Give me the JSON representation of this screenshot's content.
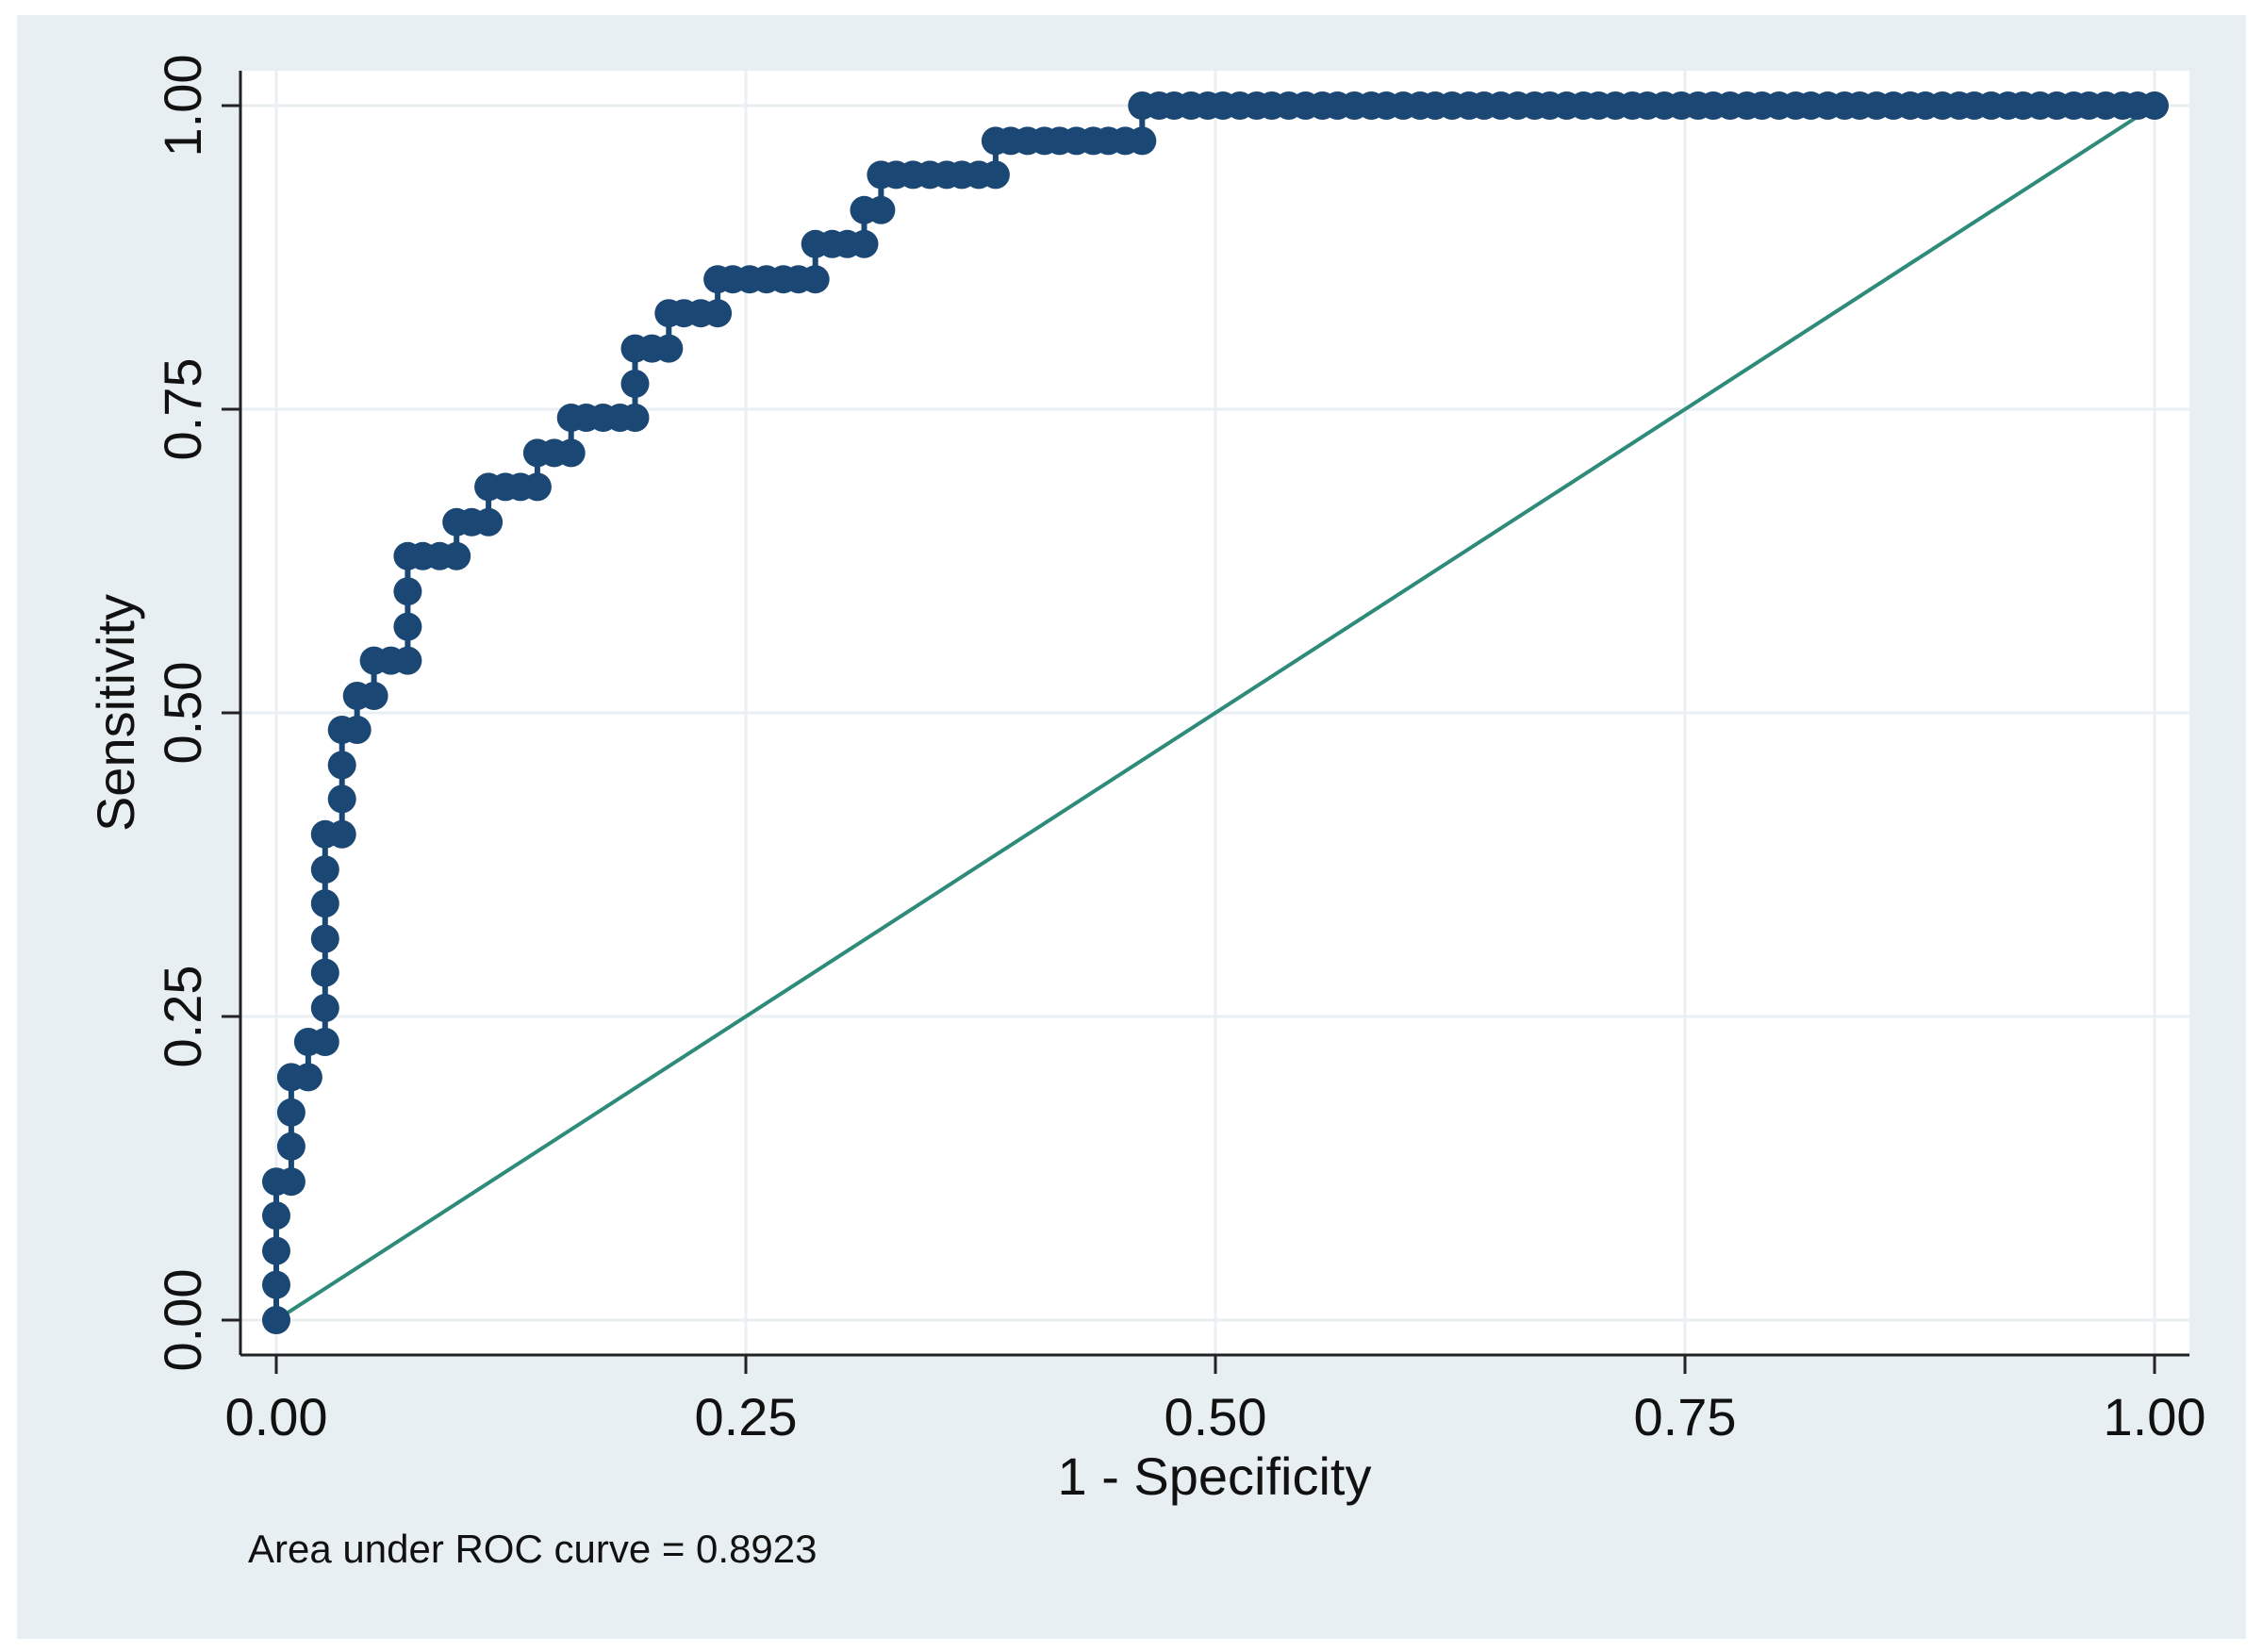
{
  "chart_data": {
    "type": "scatter",
    "title": "",
    "xlabel": "1 - Specificity",
    "ylabel": "Sensitivity",
    "xlim": [
      0,
      1
    ],
    "ylim": [
      0,
      1
    ],
    "x_ticks": [
      "0.00",
      "0.25",
      "0.50",
      "0.75",
      "1.00"
    ],
    "y_ticks": [
      "0.00",
      "0.25",
      "0.50",
      "0.75",
      "1.00"
    ],
    "grid": true,
    "legend": "none",
    "note": "Area under ROC curve = 0.8923",
    "colors": {
      "outer_background": "#e8eff2",
      "plot_background": "#ffffff",
      "grid": "#e9eff2",
      "axis": "#222222",
      "roc_markers": "#1a4773",
      "reference_line": "#2e8b7a"
    },
    "series": [
      {
        "style": "connected markers",
        "points": [
          [
            0.0,
            0.0
          ],
          [
            0.0,
            0.029
          ],
          [
            0.0,
            0.057
          ],
          [
            0.0,
            0.086
          ],
          [
            0.0,
            0.114
          ],
          [
            0.008,
            0.114
          ],
          [
            0.008,
            0.143
          ],
          [
            0.008,
            0.171
          ],
          [
            0.008,
            0.2
          ],
          [
            0.017,
            0.2
          ],
          [
            0.017,
            0.229
          ],
          [
            0.026,
            0.229
          ],
          [
            0.026,
            0.257
          ],
          [
            0.026,
            0.286
          ],
          [
            0.026,
            0.314
          ],
          [
            0.026,
            0.343
          ],
          [
            0.026,
            0.371
          ],
          [
            0.026,
            0.4
          ],
          [
            0.035,
            0.4
          ],
          [
            0.035,
            0.429
          ],
          [
            0.035,
            0.457
          ],
          [
            0.035,
            0.486
          ],
          [
            0.043,
            0.486
          ],
          [
            0.043,
            0.514
          ],
          [
            0.052,
            0.514
          ],
          [
            0.052,
            0.543
          ],
          [
            0.061,
            0.543
          ],
          [
            0.07,
            0.543
          ],
          [
            0.07,
            0.571
          ],
          [
            0.07,
            0.6
          ],
          [
            0.07,
            0.629
          ],
          [
            0.078,
            0.629
          ],
          [
            0.087,
            0.629
          ],
          [
            0.096,
            0.629
          ],
          [
            0.096,
            0.657
          ],
          [
            0.104,
            0.657
          ],
          [
            0.113,
            0.657
          ],
          [
            0.113,
            0.686
          ],
          [
            0.122,
            0.686
          ],
          [
            0.13,
            0.686
          ],
          [
            0.139,
            0.686
          ],
          [
            0.139,
            0.714
          ],
          [
            0.148,
            0.714
          ],
          [
            0.157,
            0.714
          ],
          [
            0.157,
            0.743
          ],
          [
            0.165,
            0.743
          ],
          [
            0.174,
            0.743
          ],
          [
            0.183,
            0.743
          ],
          [
            0.191,
            0.743
          ],
          [
            0.191,
            0.771
          ],
          [
            0.191,
            0.8
          ],
          [
            0.2,
            0.8
          ],
          [
            0.209,
            0.8
          ],
          [
            0.209,
            0.829
          ],
          [
            0.217,
            0.829
          ],
          [
            0.226,
            0.829
          ],
          [
            0.235,
            0.829
          ],
          [
            0.235,
            0.857
          ],
          [
            0.243,
            0.857
          ],
          [
            0.252,
            0.857
          ],
          [
            0.261,
            0.857
          ],
          [
            0.27,
            0.857
          ],
          [
            0.278,
            0.857
          ],
          [
            0.287,
            0.857
          ],
          [
            0.287,
            0.886
          ],
          [
            0.296,
            0.886
          ],
          [
            0.304,
            0.886
          ],
          [
            0.313,
            0.886
          ],
          [
            0.313,
            0.914
          ],
          [
            0.322,
            0.914
          ],
          [
            0.322,
            0.943
          ],
          [
            0.33,
            0.943
          ],
          [
            0.339,
            0.943
          ],
          [
            0.348,
            0.943
          ],
          [
            0.357,
            0.943
          ],
          [
            0.365,
            0.943
          ],
          [
            0.374,
            0.943
          ],
          [
            0.383,
            0.943
          ],
          [
            0.383,
            0.971
          ],
          [
            0.391,
            0.971
          ],
          [
            0.4,
            0.971
          ],
          [
            0.409,
            0.971
          ],
          [
            0.417,
            0.971
          ],
          [
            0.426,
            0.971
          ],
          [
            0.435,
            0.971
          ],
          [
            0.443,
            0.971
          ],
          [
            0.452,
            0.971
          ],
          [
            0.461,
            0.971
          ],
          [
            0.461,
            1.0
          ],
          [
            0.47,
            1.0
          ],
          [
            0.478,
            1.0
          ],
          [
            0.487,
            1.0
          ],
          [
            0.496,
            1.0
          ],
          [
            0.504,
            1.0
          ],
          [
            0.513,
            1.0
          ],
          [
            0.522,
            1.0
          ],
          [
            0.53,
            1.0
          ],
          [
            0.539,
            1.0
          ],
          [
            0.548,
            1.0
          ],
          [
            0.557,
            1.0
          ],
          [
            0.565,
            1.0
          ],
          [
            0.574,
            1.0
          ],
          [
            0.583,
            1.0
          ],
          [
            0.591,
            1.0
          ],
          [
            0.6,
            1.0
          ],
          [
            0.609,
            1.0
          ],
          [
            0.617,
            1.0
          ],
          [
            0.626,
            1.0
          ],
          [
            0.635,
            1.0
          ],
          [
            0.643,
            1.0
          ],
          [
            0.652,
            1.0
          ],
          [
            0.661,
            1.0
          ],
          [
            0.67,
            1.0
          ],
          [
            0.678,
            1.0
          ],
          [
            0.687,
            1.0
          ],
          [
            0.696,
            1.0
          ],
          [
            0.704,
            1.0
          ],
          [
            0.713,
            1.0
          ],
          [
            0.722,
            1.0
          ],
          [
            0.73,
            1.0
          ],
          [
            0.739,
            1.0
          ],
          [
            0.748,
            1.0
          ],
          [
            0.757,
            1.0
          ],
          [
            0.765,
            1.0
          ],
          [
            0.774,
            1.0
          ],
          [
            0.783,
            1.0
          ],
          [
            0.791,
            1.0
          ],
          [
            0.8,
            1.0
          ],
          [
            0.809,
            1.0
          ],
          [
            0.817,
            1.0
          ],
          [
            0.826,
            1.0
          ],
          [
            0.835,
            1.0
          ],
          [
            0.843,
            1.0
          ],
          [
            0.852,
            1.0
          ],
          [
            0.861,
            1.0
          ],
          [
            0.87,
            1.0
          ],
          [
            0.878,
            1.0
          ],
          [
            0.887,
            1.0
          ],
          [
            0.896,
            1.0
          ],
          [
            0.904,
            1.0
          ],
          [
            0.913,
            1.0
          ],
          [
            0.922,
            1.0
          ],
          [
            0.93,
            1.0
          ],
          [
            0.939,
            1.0
          ],
          [
            0.948,
            1.0
          ],
          [
            0.957,
            1.0
          ],
          [
            0.965,
            1.0
          ],
          [
            0.974,
            1.0
          ],
          [
            0.983,
            1.0
          ],
          [
            0.991,
            1.0
          ],
          [
            1.0,
            1.0
          ]
        ]
      },
      {
        "style": "reference line",
        "points": [
          [
            0,
            0
          ],
          [
            1,
            1
          ]
        ]
      }
    ]
  }
}
